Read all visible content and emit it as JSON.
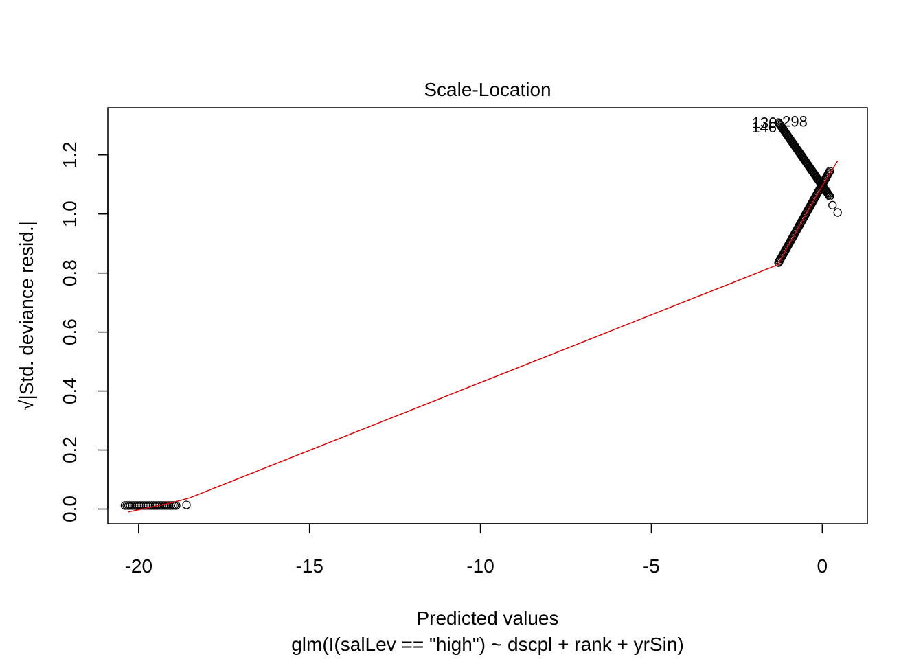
{
  "chart_data": {
    "type": "scatter",
    "title": "Scale-Location",
    "xlabel": "Predicted values",
    "subtitle": "glm(I(salLev == \"high\") ~ dscpl + rank + yrSin)",
    "ylabel": "√|Std. deviance resid.|",
    "xlim": [
      -20.9,
      1.32
    ],
    "ylim": [
      -0.05,
      1.36
    ],
    "x_ticks": [
      -20,
      -15,
      -10,
      -5,
      0
    ],
    "x_tick_labels": [
      "-20",
      "-15",
      "-10",
      "-5",
      "0"
    ],
    "y_ticks": [
      0.0,
      0.2,
      0.4,
      0.6,
      0.8,
      1.0,
      1.2
    ],
    "y_tick_labels": [
      "0.0",
      "0.2",
      "0.4",
      "0.6",
      "0.8",
      "1.0",
      "1.2"
    ],
    "grid": false,
    "legend": "none",
    "point_color": "#000000",
    "smooth_color": "#dd0000",
    "point_clusters": [
      {
        "x_range": [
          -20.4,
          -18.9
        ],
        "y": 0.012
      },
      {
        "x": -18.6,
        "y": 0.014
      },
      {
        "from": [
          -1.28,
          0.835
        ],
        "to": [
          0.22,
          1.145
        ]
      },
      {
        "from": [
          -1.28,
          1.31
        ],
        "to": [
          0.22,
          1.06
        ]
      },
      {
        "x": 0.3,
        "y": 1.03
      },
      {
        "x": 0.45,
        "y": 1.005
      }
    ],
    "smooth_line": [
      {
        "x": -20.3,
        "y": -0.01
      },
      {
        "x": -19.0,
        "y": 0.022
      },
      {
        "x": -18.5,
        "y": 0.038
      },
      {
        "x": -1.3,
        "y": 0.828
      },
      {
        "x": -0.5,
        "y": 0.995
      },
      {
        "x": 0.0,
        "y": 1.095
      },
      {
        "x": 0.45,
        "y": 1.18
      }
    ],
    "point_labels": [
      {
        "text": "146",
        "x": -1.7,
        "y": 1.295
      },
      {
        "text": "130",
        "x": -1.69,
        "y": 1.31
      },
      {
        "text": "298",
        "x": -0.8,
        "y": 1.315
      }
    ]
  }
}
